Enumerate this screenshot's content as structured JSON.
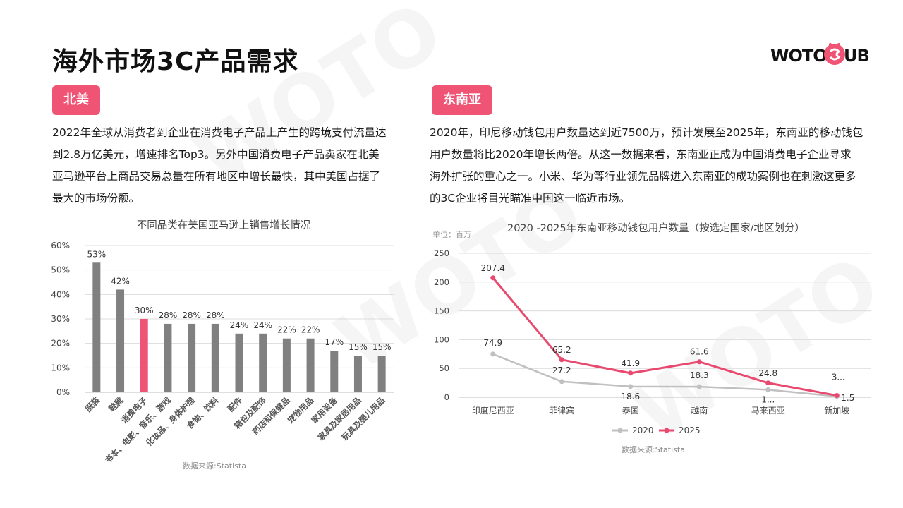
{
  "page_title": "海外市场3C产品需求",
  "logo": {
    "text_left": "WOTO",
    "text_right": "UB"
  },
  "colors": {
    "accent": "#ef5475",
    "bar_gray": "#808080",
    "line_gray": "#c0c0c0",
    "text": "#222222"
  },
  "left": {
    "tag": "北美",
    "paragraph_lines": [
      "2022年全球从消费者到企业在消费电子产品上产生的跨境支付流量达",
      "到2.8万亿美元，增速排名Top3。另外中国消费电子产品卖家在北美",
      "亚马逊平台上商品交易总量在所有地区中增长最快，其中美国占据了",
      "最大的市场份额。"
    ]
  },
  "right": {
    "tag": "东南亚",
    "paragraph_lines": [
      "2020年，印尼移动钱包用户数量达到近7500万，预计发展至2025年，东南亚的移动钱包",
      "用户数量将比2020年增长两倍。从这一数据来看，东南亚正成为中国消费电子企业寻求",
      "海外扩张的重心之一。小米、华为等行业领先品牌进入东南亚的成功案例也在刺激这更多",
      "的3C企业将目光瞄准中国这一临近市场。"
    ]
  },
  "chart_data": [
    {
      "type": "bar",
      "title": "不同品类在美国亚马逊上销售增长情况",
      "categories": [
        "服装",
        "鞋靴",
        "消费电子",
        "书本、电影、音乐、游戏",
        "化妆品、身体护理",
        "食物、饮料",
        "配件",
        "箱包及配饰",
        "药店和保健品",
        "宠物用品",
        "家用设备",
        "家具及家居用品",
        "玩具及婴儿用品"
      ],
      "values": [
        53,
        42,
        30,
        28,
        28,
        28,
        24,
        24,
        22,
        22,
        17,
        15,
        15
      ],
      "value_labels": [
        "53%",
        "42%",
        "30%",
        "28%",
        "28%",
        "28%",
        "24%",
        "24%",
        "22%",
        "22%",
        "17%",
        "15%",
        "15%"
      ],
      "highlight_index": 2,
      "y_ticks": [
        "0%",
        "10%",
        "20%",
        "30%",
        "40%",
        "50%",
        "60%"
      ],
      "ylim": [
        0,
        60
      ],
      "grid": true,
      "source": "数据来源:Statista"
    },
    {
      "type": "line",
      "title": "2020 -2025年东南亚移动钱包用户数量（按选定国家/地区划分）",
      "unit": "单位：百万",
      "categories": [
        "印度尼西亚",
        "菲律宾",
        "泰国",
        "越南",
        "马来西亚",
        "新加坡"
      ],
      "series": [
        {
          "name": "2020",
          "values": [
            74.9,
            27.2,
            18.6,
            18.3,
            13.0,
            1.5
          ],
          "labels": [
            "74.9",
            "27.2",
            "18.6",
            "18.3",
            "1...",
            "1.5"
          ],
          "color": "#c0c0c0"
        },
        {
          "name": "2025",
          "values": [
            207.4,
            65.2,
            41.9,
            61.6,
            24.8,
            3.0
          ],
          "labels": [
            "207.4",
            "65.2",
            "41.9",
            "61.6",
            "24.8",
            "3..."
          ],
          "color": "#e8496e"
        }
      ],
      "y_ticks": [
        "0",
        "50",
        "100",
        "150",
        "200",
        "250"
      ],
      "ylim": [
        0,
        250
      ],
      "grid": true,
      "legend_position": "bottom",
      "source": "数据来源:Statista"
    }
  ]
}
